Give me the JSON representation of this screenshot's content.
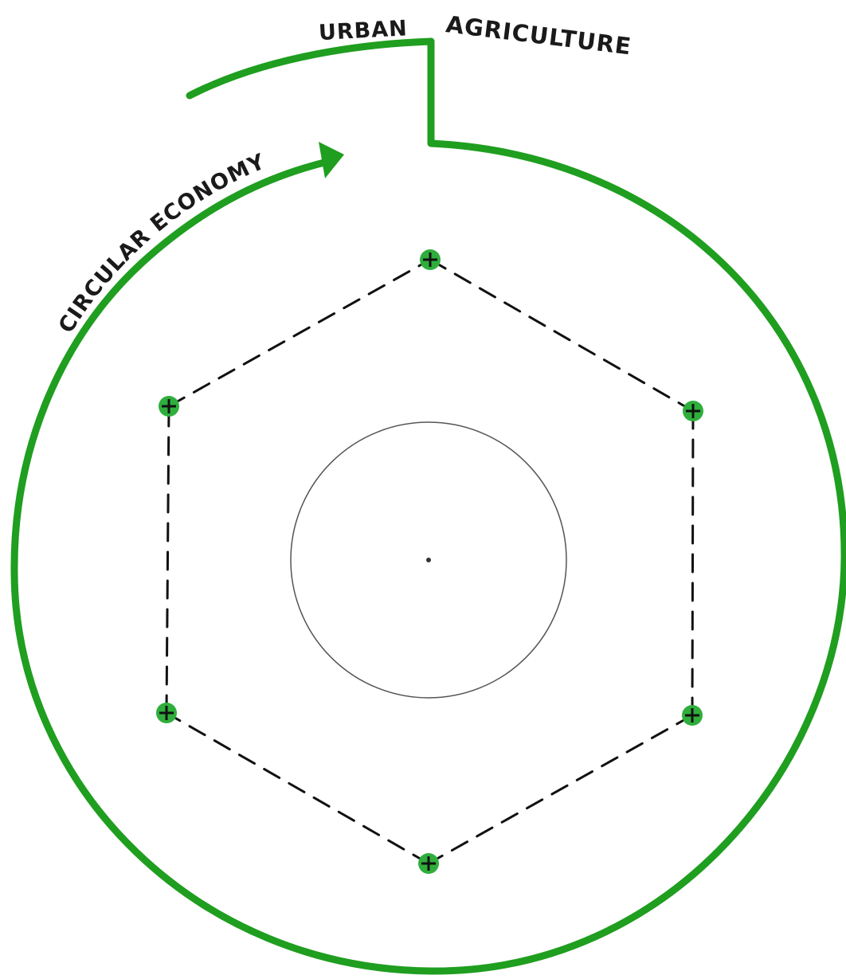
{
  "diagram": {
    "labels": {
      "top_left": "URBAN",
      "top_right": "AGRICULTURE",
      "arc_text": "CIRCULAR ECONOMY"
    },
    "node_symbol": "+",
    "node_count": 6,
    "colors": {
      "ring": "#1f9e1f",
      "node_fill": "#2fae3c",
      "node_mark": "#111111",
      "dashed_line": "#111111",
      "inner_circle": "#555555",
      "text": "#1a1a1a",
      "background": "#ffffff"
    },
    "icons": {
      "arrow": "arrow-head-icon",
      "node": "plus-node-icon"
    }
  }
}
